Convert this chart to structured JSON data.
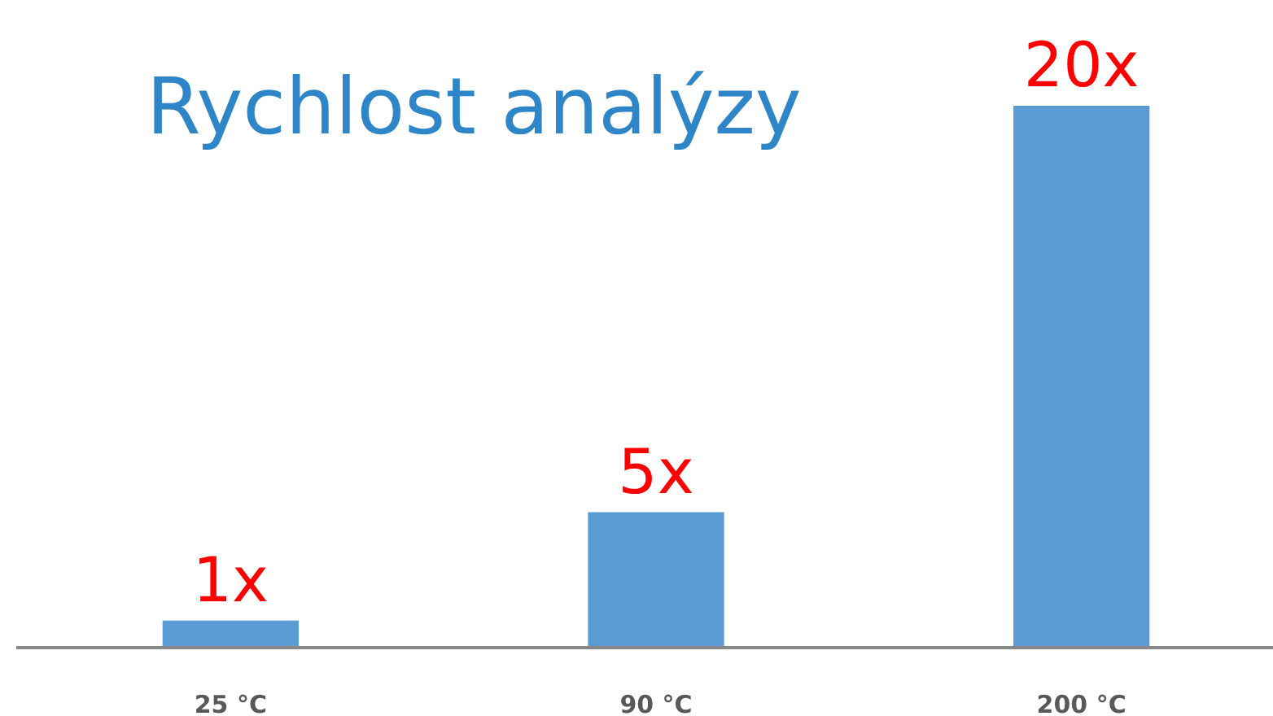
{
  "chart_data": {
    "type": "bar",
    "title": "Rychlost analýzy",
    "categories": [
      "25 °C",
      "90 °C",
      "200 °C"
    ],
    "values": [
      1,
      5,
      20
    ],
    "value_labels": [
      "1x",
      "5x",
      "20x"
    ],
    "color": "#5b9bd5"
  }
}
